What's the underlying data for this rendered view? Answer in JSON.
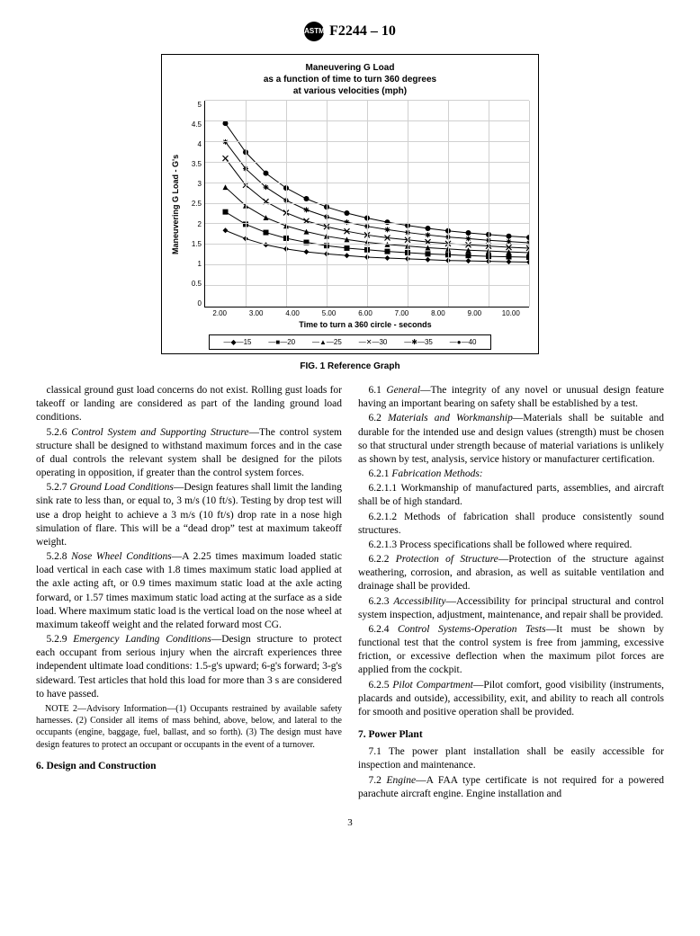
{
  "header": {
    "standard": "F2244 – 10",
    "logo_text": "ASTM"
  },
  "chart": {
    "type": "line",
    "title_lines": [
      "Maneuvering G Load",
      "as a function of time to turn 360 degrees",
      "at various velocities (mph)"
    ],
    "ylabel": "Maneuvering G Load - G's",
    "xlabel": "Time to turn a 360 circle - seconds",
    "ylim": [
      0,
      5
    ],
    "ytick_step": 0.5,
    "xlim": [
      2,
      10
    ],
    "xtick_step": 1,
    "yticks": [
      "0",
      "0.5",
      "1",
      "1.5",
      "2",
      "2.5",
      "3",
      "3.5",
      "4",
      "4.5",
      "5"
    ],
    "xticks": [
      "2.00",
      "3.00",
      "4.00",
      "5.00",
      "6.00",
      "7.00",
      "8.00",
      "9.00",
      "10.00"
    ],
    "border_color": "#000000",
    "grid_color": "#d0d0d0",
    "background_color": "#ffffff",
    "title_fontsize": 10,
    "label_fontsize": 9,
    "tick_fontsize": 8,
    "series": [
      {
        "label": "15",
        "marker": "diamond",
        "color": "#000",
        "xs": [
          2.5,
          3,
          3.5,
          4,
          4.5,
          5,
          5.5,
          6,
          6.5,
          7,
          7.5,
          8,
          8.5,
          9,
          9.5,
          10
        ],
        "ys": [
          1.85,
          1.65,
          1.5,
          1.4,
          1.33,
          1.28,
          1.24,
          1.2,
          1.18,
          1.16,
          1.14,
          1.12,
          1.11,
          1.1,
          1.09,
          1.08
        ]
      },
      {
        "label": "20",
        "marker": "square",
        "color": "#000",
        "xs": [
          2.5,
          3,
          3.5,
          4,
          4.5,
          5,
          5.5,
          6,
          6.5,
          7,
          7.5,
          8,
          8.5,
          9,
          9.5,
          10
        ],
        "ys": [
          2.3,
          2.0,
          1.8,
          1.66,
          1.56,
          1.48,
          1.42,
          1.38,
          1.34,
          1.31,
          1.28,
          1.26,
          1.24,
          1.22,
          1.21,
          1.2
        ]
      },
      {
        "label": "25",
        "marker": "triangle",
        "color": "#000",
        "xs": [
          2.5,
          3,
          3.5,
          4,
          4.5,
          5,
          5.5,
          6,
          6.5,
          7,
          7.5,
          8,
          8.5,
          9,
          9.5,
          10
        ],
        "ys": [
          2.9,
          2.45,
          2.16,
          1.96,
          1.82,
          1.71,
          1.63,
          1.56,
          1.51,
          1.47,
          1.43,
          1.4,
          1.37,
          1.35,
          1.33,
          1.31
        ]
      },
      {
        "label": "30",
        "marker": "x",
        "color": "#000",
        "xs": [
          2.5,
          3,
          3.5,
          4,
          4.5,
          5,
          5.5,
          6,
          6.5,
          7,
          7.5,
          8,
          8.5,
          9,
          9.5,
          10
        ],
        "ys": [
          3.6,
          2.95,
          2.55,
          2.28,
          2.08,
          1.94,
          1.83,
          1.74,
          1.67,
          1.62,
          1.57,
          1.53,
          1.5,
          1.47,
          1.44,
          1.42
        ]
      },
      {
        "label": "35",
        "marker": "asterisk",
        "color": "#000",
        "xs": [
          2.5,
          3,
          3.5,
          4,
          4.5,
          5,
          5.5,
          6,
          6.5,
          7,
          7.5,
          8,
          8.5,
          9,
          9.5,
          10
        ],
        "ys": [
          4.0,
          3.35,
          2.9,
          2.58,
          2.35,
          2.18,
          2.05,
          1.95,
          1.87,
          1.8,
          1.74,
          1.69,
          1.65,
          1.61,
          1.58,
          1.55
        ]
      },
      {
        "label": "40",
        "marker": "circle",
        "color": "#000",
        "xs": [
          2.5,
          3,
          3.5,
          4,
          4.5,
          5,
          5.5,
          6,
          6.5,
          7,
          7.5,
          8,
          8.5,
          9,
          9.5,
          10
        ],
        "ys": [
          4.45,
          3.75,
          3.24,
          2.88,
          2.62,
          2.42,
          2.27,
          2.15,
          2.05,
          1.97,
          1.9,
          1.84,
          1.79,
          1.75,
          1.71,
          1.68
        ]
      }
    ]
  },
  "fig_caption": "FIG. 1 Reference Graph",
  "body": {
    "p_classical": "classical ground gust load concerns do not exist. Rolling gust loads for takeoff or landing are considered as part of the landing ground load conditions.",
    "p_526_head": "5.2.6 ",
    "p_526_title": "Control System and Supporting Structure",
    "p_526": "—The control system structure shall be designed to withstand maximum forces and in the case of dual controls the relevant system shall be designed for the pilots operating in opposition, if greater than the control system forces.",
    "p_527_head": "5.2.7 ",
    "p_527_title": "Ground Load Conditions",
    "p_527": "—Design features shall limit the landing sink rate to less than, or equal to, 3 m/s (10 ft/s). Testing by drop test will use a drop height to achieve a 3 m/s (10 ft/s) drop rate in a nose high simulation of flare. This will be a “dead drop” test at maximum takeoff weight.",
    "p_528_head": "5.2.8 ",
    "p_528_title": "Nose Wheel Conditions",
    "p_528": "—A 2.25 times maximum loaded static load vertical in each case with 1.8 times maximum static load applied at the axle acting aft, or 0.9 times maximum static load at the axle acting forward, or 1.57 times maximum static load acting at the surface as a side load. Where maximum static load is the vertical load on the nose wheel at maximum takeoff weight and the related forward most CG.",
    "p_529_head": "5.2.9 ",
    "p_529_title": "Emergency Landing Conditions",
    "p_529": "—Design structure to protect each occupant from serious injury when the aircraft experiences three independent ultimate load conditions: 1.5-g's upward; 6-g's forward; 3-g's sideward. Test articles that hold this load for more than 3 s are considered to have passed.",
    "note2": "NOTE 2—Advisory Information—(1) Occupants restrained by available safety harnesses. (2) Consider all items of mass behind, above, below, and lateral to the occupants (engine, baggage, fuel, ballast, and so forth). (3) The design must have design features to protect an occupant or occupants in the event of a turnover.",
    "s6_head": "6. Design and Construction",
    "p_61_head": "6.1 ",
    "p_61_title": "General",
    "p_61": "—The integrity of any novel or unusual design feature having an important bearing on safety shall be established by a test.",
    "p_62_head": "6.2 ",
    "p_62_title": "Materials and Workmanship",
    "p_62": "—Materials shall be suitable and durable for the intended use and design values (strength) must be chosen so that structural under strength because of material variations is unlikely as shown by test, analysis, service history or manufacturer certification.",
    "p_621_head": "6.2.1 ",
    "p_621_title": "Fabrication Methods:",
    "p_6211": "6.2.1.1 Workmanship of manufactured parts, assemblies, and aircraft shall be of high standard.",
    "p_6212": "6.2.1.2 Methods of fabrication shall produce consistently sound structures.",
    "p_6213": "6.2.1.3 Process specifications shall be followed where required.",
    "p_622_head": "6.2.2 ",
    "p_622_title": "Protection of Structure",
    "p_622": "—Protection of the structure against weathering, corrosion, and abrasion, as well as suitable ventilation and drainage shall be provided.",
    "p_623_head": "6.2.3 ",
    "p_623_title": "Accessibility",
    "p_623": "—Accessibility for principal structural and control system inspection, adjustment, maintenance, and repair shall be provided.",
    "p_624_head": "6.2.4 ",
    "p_624_title": "Control Systems-Operation Tests",
    "p_624": "—It must be shown by functional test that the control system is free from jamming, excessive friction, or excessive deflection when the maximum pilot forces are applied from the cockpit.",
    "p_625_head": "6.2.5 ",
    "p_625_title": "Pilot Compartment",
    "p_625": "—Pilot comfort, good visibility (instruments, placards and outside), accessibility, exit, and ability to reach all controls for smooth and positive operation shall be provided.",
    "s7_head": "7. Power Plant",
    "p_71": "7.1 The power plant installation shall be easily accessible for inspection and maintenance.",
    "p_72_head": "7.2 ",
    "p_72_title": "Engine",
    "p_72": "—A FAA type certificate is not required for a powered parachute aircraft engine. Engine installation and"
  },
  "pagenum": "3"
}
